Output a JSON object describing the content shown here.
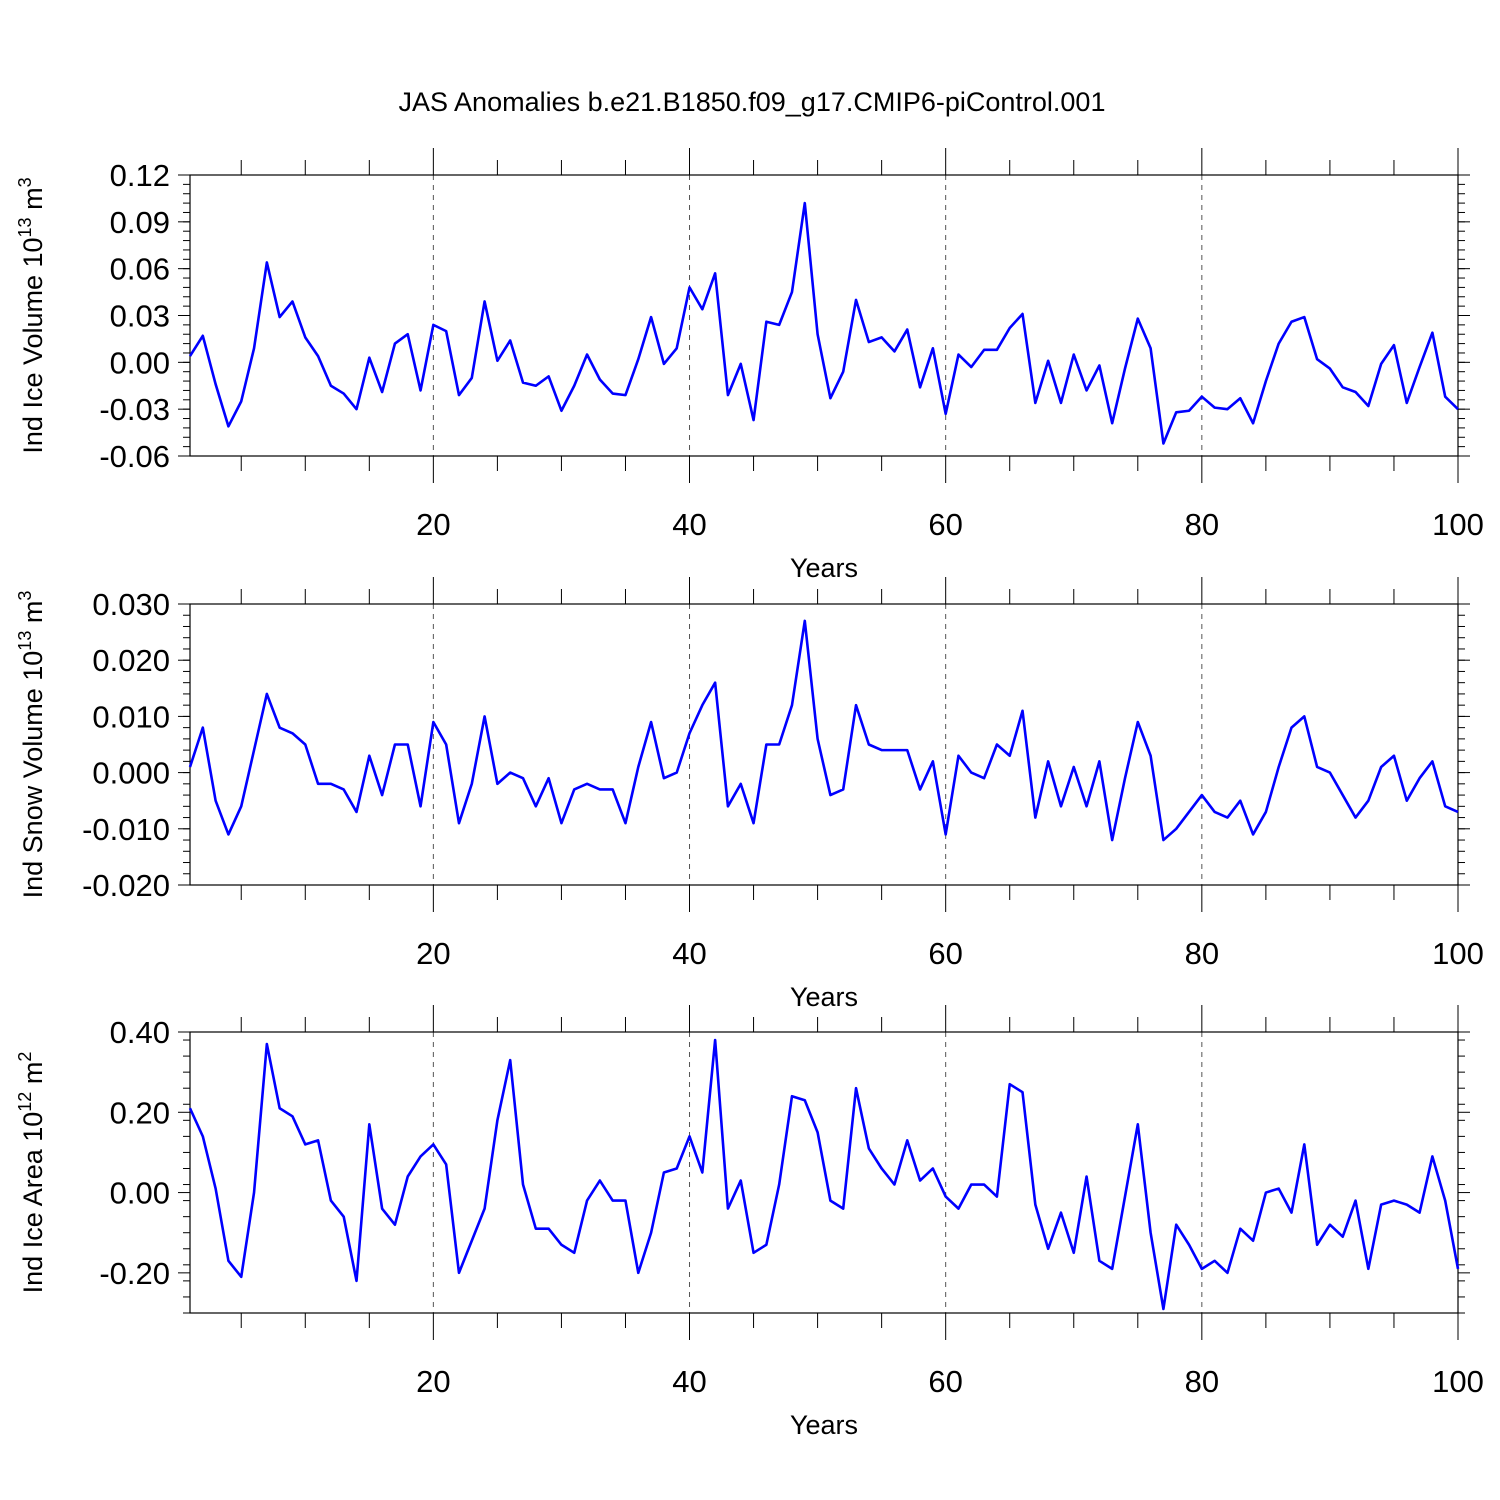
{
  "title": "JAS Anomalies b.e21.B1850.f09_g17.CMIP6-piControl.001",
  "colors": {
    "line": "#0000ff",
    "axis": "#000000",
    "grid": "#555555"
  },
  "chart_data": [
    {
      "type": "line",
      "xlabel": "Years",
      "ylabel_main": "Ind Ice Volume 10",
      "ylabel_exp": "13",
      "ylabel_unit": " m",
      "ylabel_unit_exp": "3",
      "xlim": [
        1,
        100
      ],
      "ylim": [
        -0.06,
        0.12
      ],
      "xticks": [
        20,
        40,
        60,
        80,
        100
      ],
      "xtick_labels": [
        "20",
        "40",
        "60",
        "80",
        "100"
      ],
      "yticks": [
        -0.06,
        -0.03,
        0.0,
        0.03,
        0.06,
        0.09,
        0.12
      ],
      "ytick_labels": [
        "-0.06",
        "-0.03",
        "0.00",
        "0.03",
        "0.06",
        "0.09",
        "0.12"
      ],
      "grid_x": [
        20,
        40,
        60,
        80
      ],
      "series": [
        {
          "name": "Ind Ice Volume",
          "x_start": 1,
          "values": [
            0.004,
            0.017,
            -0.014,
            -0.041,
            -0.025,
            0.009,
            0.064,
            0.029,
            0.039,
            0.016,
            0.004,
            -0.015,
            -0.02,
            -0.03,
            0.003,
            -0.019,
            0.012,
            0.018,
            -0.018,
            0.024,
            0.02,
            -0.021,
            -0.01,
            0.039,
            0.001,
            0.014,
            -0.013,
            -0.015,
            -0.009,
            -0.031,
            -0.015,
            0.005,
            -0.011,
            -0.02,
            -0.021,
            0.002,
            0.029,
            -0.001,
            0.009,
            0.048,
            0.034,
            0.057,
            -0.021,
            -0.001,
            -0.037,
            0.026,
            0.024,
            0.045,
            0.102,
            0.018,
            -0.023,
            -0.006,
            0.04,
            0.013,
            0.016,
            0.007,
            0.021,
            -0.016,
            0.009,
            -0.033,
            0.005,
            -0.003,
            0.008,
            0.008,
            0.022,
            0.031,
            -0.026,
            0.001,
            -0.026,
            0.005,
            -0.018,
            -0.002,
            -0.039,
            -0.004,
            0.028,
            0.009,
            -0.052,
            -0.032,
            -0.031,
            -0.022,
            -0.029,
            -0.03,
            -0.023,
            -0.039,
            -0.012,
            0.012,
            0.026,
            0.029,
            0.002,
            -0.004,
            -0.016,
            -0.019,
            -0.028,
            -0.001,
            0.011,
            -0.026,
            -0.003,
            0.019,
            -0.022,
            -0.03
          ]
        }
      ]
    },
    {
      "type": "line",
      "xlabel": "Years",
      "ylabel_main": "Ind Snow Volume 10",
      "ylabel_exp": "13",
      "ylabel_unit": " m",
      "ylabel_unit_exp": "3",
      "xlim": [
        1,
        100
      ],
      "ylim": [
        -0.02,
        0.03
      ],
      "xticks": [
        20,
        40,
        60,
        80,
        100
      ],
      "xtick_labels": [
        "20",
        "40",
        "60",
        "80",
        "100"
      ],
      "yticks": [
        -0.02,
        -0.01,
        0.0,
        0.01,
        0.02,
        0.03
      ],
      "ytick_labels": [
        "-0.020",
        "-0.010",
        "0.000",
        "0.010",
        "0.020",
        "0.030"
      ],
      "grid_x": [
        20,
        40,
        60,
        80
      ],
      "series": [
        {
          "name": "Ind Snow Volume",
          "x_start": 1,
          "values": [
            0.001,
            0.008,
            -0.005,
            -0.011,
            -0.006,
            0.004,
            0.014,
            0.008,
            0.007,
            0.005,
            -0.002,
            -0.002,
            -0.003,
            -0.007,
            0.003,
            -0.004,
            0.005,
            0.005,
            -0.006,
            0.009,
            0.005,
            -0.009,
            -0.002,
            0.01,
            -0.002,
            0.0,
            -0.001,
            -0.006,
            -0.001,
            -0.009,
            -0.003,
            -0.002,
            -0.003,
            -0.003,
            -0.009,
            0.001,
            0.009,
            -0.001,
            -0.0,
            0.007,
            0.012,
            0.016,
            -0.006,
            -0.002,
            -0.009,
            0.005,
            0.005,
            0.012,
            0.027,
            0.006,
            -0.004,
            -0.003,
            0.012,
            0.005,
            0.004,
            0.004,
            0.004,
            -0.003,
            0.002,
            -0.011,
            0.003,
            0.0,
            -0.001,
            0.005,
            0.003,
            0.011,
            -0.008,
            0.002,
            -0.006,
            0.001,
            -0.006,
            0.002,
            -0.012,
            -0.001,
            0.009,
            0.003,
            -0.012,
            -0.01,
            -0.007,
            -0.004,
            -0.007,
            -0.008,
            -0.005,
            -0.011,
            -0.007,
            0.001,
            0.008,
            0.01,
            0.001,
            -0.0,
            -0.004,
            -0.008,
            -0.005,
            0.001,
            0.003,
            -0.005,
            -0.001,
            0.002,
            -0.006,
            -0.007
          ]
        }
      ]
    },
    {
      "type": "line",
      "xlabel": "Years",
      "ylabel_main": "Ind Ice Area 10",
      "ylabel_exp": "12",
      "ylabel_unit": " m",
      "ylabel_unit_exp": "2",
      "xlim": [
        1,
        100
      ],
      "ylim": [
        -0.3,
        0.4
      ],
      "xticks": [
        20,
        40,
        60,
        80,
        100
      ],
      "xtick_labels": [
        "20",
        "40",
        "60",
        "80",
        "100"
      ],
      "yticks": [
        -0.2,
        0.0,
        0.2,
        0.4
      ],
      "ytick_labels": [
        "-0.20",
        "0.00",
        "0.20",
        "0.40"
      ],
      "grid_x": [
        20,
        40,
        60,
        80
      ],
      "series": [
        {
          "name": "Ind Ice Area",
          "x_start": 1,
          "values": [
            0.21,
            0.14,
            0.01,
            -0.17,
            -0.21,
            -0.0,
            0.37,
            0.21,
            0.19,
            0.12,
            0.13,
            -0.02,
            -0.06,
            -0.22,
            0.17,
            -0.04,
            -0.08,
            0.04,
            0.09,
            0.12,
            0.07,
            -0.2,
            -0.12,
            -0.04,
            0.18,
            0.33,
            0.02,
            -0.09,
            -0.09,
            -0.13,
            -0.15,
            -0.02,
            0.03,
            -0.02,
            -0.02,
            -0.2,
            -0.1,
            0.05,
            0.06,
            0.14,
            0.05,
            0.38,
            -0.04,
            0.03,
            -0.15,
            -0.13,
            0.02,
            0.24,
            0.23,
            0.15,
            -0.02,
            -0.04,
            0.26,
            0.11,
            0.06,
            0.02,
            0.13,
            0.03,
            0.06,
            -0.01,
            -0.04,
            0.02,
            0.02,
            -0.01,
            0.27,
            0.25,
            -0.03,
            -0.14,
            -0.05,
            -0.15,
            0.04,
            -0.17,
            -0.19,
            -0.01,
            0.17,
            -0.1,
            -0.29,
            -0.08,
            -0.13,
            -0.19,
            -0.17,
            -0.2,
            -0.09,
            -0.12,
            0.0,
            0.01,
            -0.05,
            0.12,
            -0.13,
            -0.08,
            -0.11,
            -0.02,
            -0.19,
            -0.03,
            -0.02,
            -0.03,
            -0.05,
            0.09,
            -0.02,
            -0.19
          ]
        }
      ]
    }
  ]
}
